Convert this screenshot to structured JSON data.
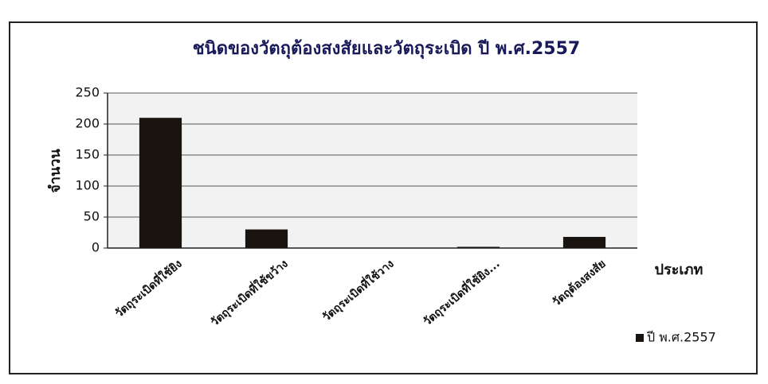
{
  "chart_data": {
    "type": "bar",
    "title": "ชนิดของวัตถุต้องสงสัยและวัตถุระเบิด ปี พ.ศ.2557",
    "y_label": "จำนวน",
    "x_label": "ประเภท",
    "categories": [
      "วัตถุระเบิดที่ใช้ยิง",
      "วัตถุระเบิดที่ใช้ขว้าง",
      "วัตถุระเบิดที่ใช้วาง",
      "วัตถุระเบิดที่ใช้ยิง...",
      "วัตถุต้องสงสัย"
    ],
    "series": [
      {
        "name": "ปี พ.ศ.2557",
        "color": "#1a1410",
        "values": [
          210,
          30,
          0,
          2,
          18
        ]
      }
    ],
    "ylim": [
      0,
      250
    ],
    "yticks": [
      0,
      50,
      100,
      150,
      200,
      250
    ],
    "grid": true,
    "legend": "right"
  }
}
